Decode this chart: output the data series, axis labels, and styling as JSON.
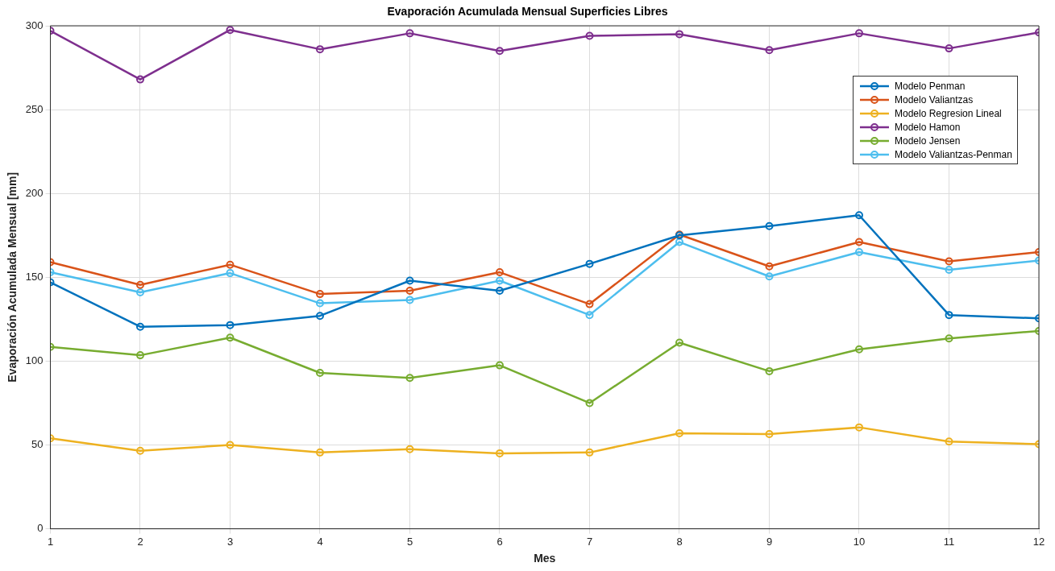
{
  "chart_data": {
    "type": "line",
    "title": "Evaporación Acumulada Mensual Superficies Libres",
    "xlabel": "Mes",
    "ylabel": "Evaporación Acumulada Mensual [mm]",
    "x": [
      1,
      2,
      3,
      4,
      5,
      6,
      7,
      8,
      9,
      10,
      11,
      12
    ],
    "xlim": [
      1,
      12
    ],
    "xticks": [
      1,
      2,
      3,
      4,
      5,
      6,
      7,
      8,
      9,
      10,
      11,
      12
    ],
    "ylim": [
      0,
      300
    ],
    "yticks": [
      0,
      50,
      100,
      150,
      200,
      250,
      300
    ],
    "grid": true,
    "legend": "top right",
    "marker": "circle",
    "line_style": "solid",
    "series": [
      {
        "name": "Modelo Penman",
        "color": "#0072bd",
        "values": [
          147,
          120.5,
          121.5,
          127,
          148,
          142,
          158,
          175,
          180.5,
          187,
          127.5,
          125.5
        ]
      },
      {
        "name": "Modelo Valiantzas",
        "color": "#d95319",
        "values": [
          159,
          145.5,
          157.5,
          140,
          142,
          153,
          134,
          175.5,
          156.5,
          171,
          159.5,
          165
        ]
      },
      {
        "name": "Modelo Regresion Lineal",
        "color": "#edb120",
        "values": [
          54,
          46.5,
          50,
          45.5,
          47.5,
          45,
          45.5,
          57,
          56.5,
          60.5,
          52,
          50.5
        ]
      },
      {
        "name": "Modelo Hamon",
        "color": "#7e2f8e",
        "values": [
          297,
          268,
          297.5,
          286,
          295.5,
          285,
          294,
          295,
          285.5,
          295.5,
          286.5,
          296
        ]
      },
      {
        "name": "Modelo Jensen",
        "color": "#77ac30",
        "values": [
          108.5,
          103.5,
          114,
          93,
          90,
          97.5,
          75,
          111,
          94,
          107,
          113.5,
          118
        ]
      },
      {
        "name": "Modelo Valiantzas-Penman",
        "color": "#4dbeee",
        "values": [
          153,
          141,
          152.5,
          134.5,
          136.5,
          148,
          127.5,
          171,
          150.5,
          165,
          154.5,
          160
        ]
      }
    ]
  }
}
